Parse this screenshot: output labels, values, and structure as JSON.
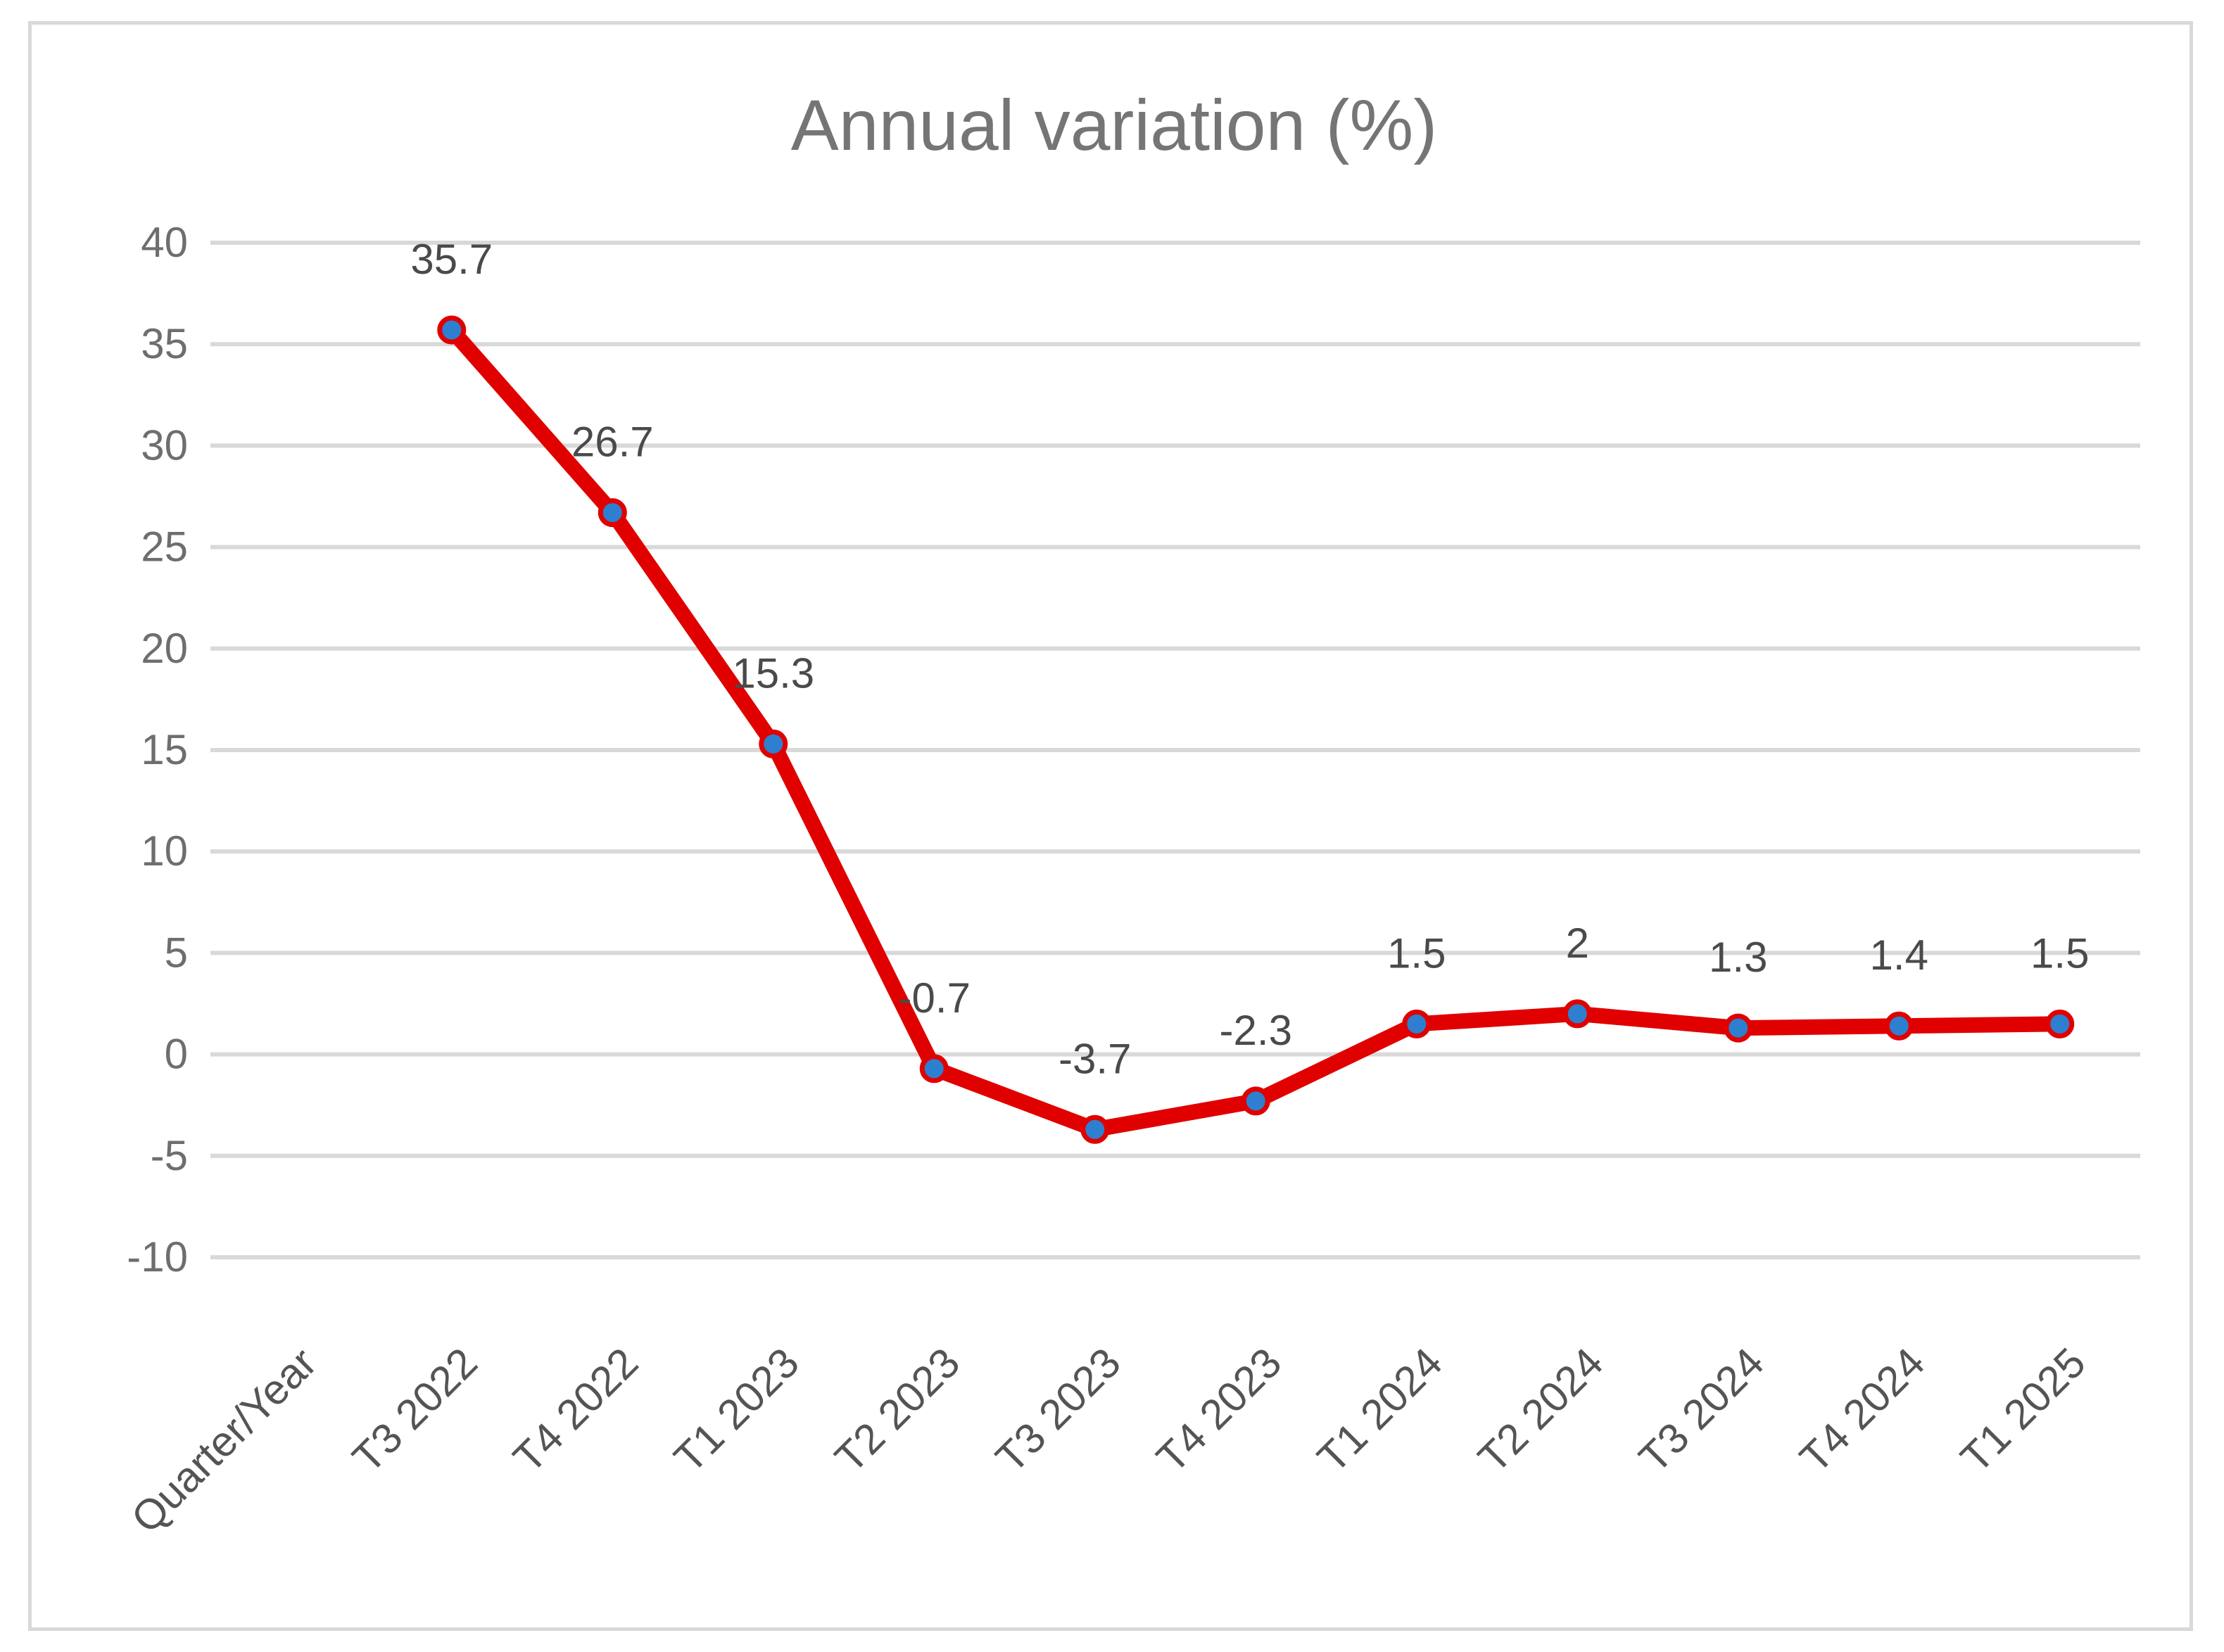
{
  "chart_data": {
    "type": "line",
    "title": "Annual variation (%)",
    "categories": [
      "Quarter/Year",
      "T3 2022",
      "T4 2022",
      "T1 2023",
      "T2 2023",
      "T3 2023",
      "T4 2023",
      "T1 2024",
      "T2 2024",
      "T3 2024",
      "T4 2024",
      "T1 2025"
    ],
    "series": [
      {
        "name": "Annual variation (%)",
        "values": [
          null,
          35.7,
          26.7,
          15.3,
          -0.7,
          -3.7,
          -2.3,
          1.5,
          2,
          1.3,
          1.4,
          1.5
        ],
        "labels": [
          "",
          "35.7",
          "26.7",
          "15.3",
          "-0.7",
          "-3.7",
          "-2.3",
          "1.5",
          "2",
          "1.3",
          "1.4",
          "1.5"
        ],
        "line_color": "#e00000",
        "marker_color": "#2e7fd0"
      }
    ],
    "yticks": [
      40,
      35,
      30,
      25,
      20,
      15,
      10,
      5,
      0,
      -5,
      -10
    ],
    "ytick_labels": [
      "40",
      "35",
      "30",
      "25",
      "20",
      "15",
      "10",
      "5",
      "0",
      "-5",
      "-10"
    ],
    "ylim": [
      -10,
      40
    ],
    "xlabel": "",
    "ylabel": "",
    "grid": true,
    "legend": "none"
  }
}
